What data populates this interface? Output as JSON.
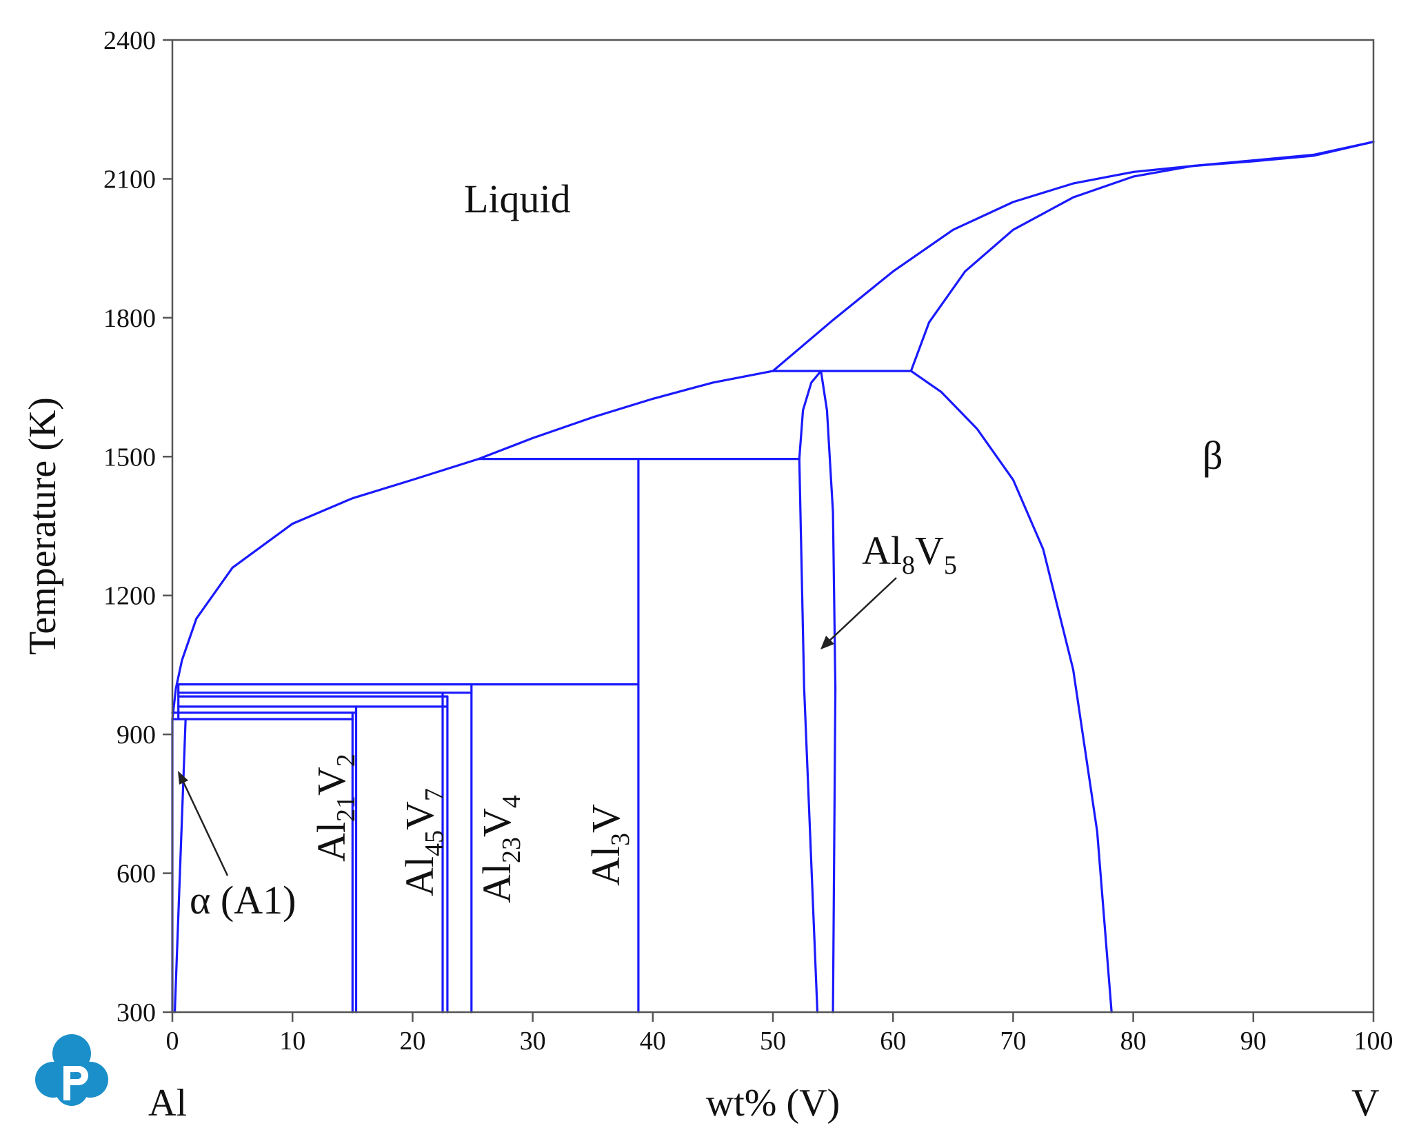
{
  "chart_data": {
    "type": "line",
    "xlabel": "wt% (V)",
    "ylabel": "Temperature (K)",
    "xlim": [
      0,
      100
    ],
    "ylim": [
      300,
      2400
    ],
    "x_ticks": [
      0,
      10,
      20,
      30,
      40,
      50,
      60,
      70,
      80,
      90,
      100
    ],
    "y_ticks": [
      300,
      600,
      900,
      1200,
      1500,
      1800,
      2100,
      2400
    ],
    "x_end_labels": {
      "left": "Al",
      "right": "V"
    },
    "line_color": "#1a1aff",
    "region_labels": {
      "liquid": "Liquid",
      "beta": "β",
      "alpha": "α (A1)"
    },
    "phases": [
      {
        "id": "al8v5",
        "base": "Al",
        "sub1": "8",
        "mid": "V",
        "sub2": "5"
      },
      {
        "id": "al21v2",
        "base": "Al",
        "sub1": "21",
        "mid": "V",
        "sub2": "2"
      },
      {
        "id": "al45v7",
        "base": "Al",
        "sub1": "45",
        "mid": "V",
        "sub2": "7"
      },
      {
        "id": "al23v4",
        "base": "Al",
        "sub1": "23",
        "mid": "V",
        "sub2": "4"
      },
      {
        "id": "al3v",
        "base": "Al",
        "sub1": "3",
        "mid": "V",
        "sub2": ""
      }
    ],
    "series": [
      {
        "points": [
          [
            0,
            933
          ],
          [
            0.3,
            1000
          ],
          [
            0.8,
            1060
          ],
          [
            2,
            1150
          ],
          [
            5,
            1260
          ],
          [
            10,
            1355
          ],
          [
            15,
            1410
          ],
          [
            20,
            1450
          ],
          [
            25.5,
            1495
          ]
        ]
      },
      {
        "points": [
          [
            25.5,
            1495
          ],
          [
            30,
            1540
          ],
          [
            35,
            1585
          ],
          [
            40,
            1625
          ],
          [
            45,
            1660
          ],
          [
            50,
            1685
          ]
        ]
      },
      {
        "points": [
          [
            50,
            1685
          ],
          [
            55,
            1795
          ],
          [
            60,
            1900
          ],
          [
            65,
            1990
          ],
          [
            70,
            2050
          ],
          [
            75,
            2090
          ],
          [
            80,
            2115
          ],
          [
            85,
            2128
          ],
          [
            90,
            2138
          ],
          [
            95,
            2150
          ],
          [
            100,
            2180
          ]
        ]
      },
      {
        "points": [
          [
            61.5,
            1685
          ],
          [
            63,
            1790
          ],
          [
            66,
            1900
          ],
          [
            70,
            1990
          ],
          [
            75,
            2060
          ],
          [
            80,
            2105
          ],
          [
            85,
            2128
          ],
          [
            90,
            2140
          ],
          [
            95,
            2152
          ],
          [
            100,
            2180
          ]
        ]
      },
      {
        "points": [
          [
            61.5,
            1685
          ],
          [
            64,
            1640
          ],
          [
            67,
            1560
          ],
          [
            70,
            1450
          ],
          [
            72.5,
            1300
          ],
          [
            75,
            1040
          ],
          [
            77,
            690
          ],
          [
            78.2,
            300
          ]
        ]
      },
      {
        "points": [
          [
            50,
            1685
          ],
          [
            61.5,
            1685
          ]
        ]
      },
      {
        "points": [
          [
            25.5,
            1495
          ],
          [
            52.2,
            1495
          ]
        ]
      },
      {
        "points": [
          [
            52.2,
            1495
          ],
          [
            52.5,
            1600
          ],
          [
            53.2,
            1660
          ],
          [
            54,
            1685
          ],
          [
            54.5,
            1600
          ],
          [
            55,
            1380
          ],
          [
            55.2,
            1000
          ],
          [
            55,
            300
          ]
        ]
      },
      {
        "points": [
          [
            52.2,
            1495
          ],
          [
            52.6,
            1000
          ],
          [
            53.7,
            300
          ]
        ]
      },
      {
        "points": [
          [
            0.5,
            1008
          ],
          [
            38.8,
            1008
          ]
        ]
      },
      {
        "points": [
          [
            38.8,
            1495
          ],
          [
            38.8,
            300
          ]
        ]
      },
      {
        "points": [
          [
            0.5,
            990
          ],
          [
            24.9,
            990
          ]
        ]
      },
      {
        "points": [
          [
            24.9,
            1008
          ],
          [
            24.9,
            300
          ]
        ]
      },
      {
        "points": [
          [
            0.5,
            982
          ],
          [
            22.9,
            982
          ]
        ]
      },
      {
        "points": [
          [
            22.9,
            982
          ],
          [
            22.9,
            300
          ]
        ]
      },
      {
        "points": [
          [
            22.5,
            990
          ],
          [
            22.5,
            300
          ]
        ]
      },
      {
        "points": [
          [
            0.5,
            960
          ],
          [
            22.9,
            960
          ]
        ]
      },
      {
        "points": [
          [
            15.3,
            960
          ],
          [
            15.3,
            300
          ]
        ]
      },
      {
        "points": [
          [
            0,
            947
          ],
          [
            15.3,
            947
          ]
        ]
      },
      {
        "points": [
          [
            0,
            933
          ],
          [
            15.0,
            933
          ]
        ]
      },
      {
        "points": [
          [
            15.0,
            947
          ],
          [
            15.0,
            300
          ]
        ]
      },
      {
        "points": [
          [
            1.1,
            933
          ],
          [
            0.2,
            300
          ]
        ]
      },
      {
        "points": [
          [
            0.5,
            1008
          ],
          [
            0.5,
            933
          ]
        ]
      },
      {
        "points": [
          [
            0,
            933
          ],
          [
            0,
            300
          ]
        ]
      }
    ]
  }
}
